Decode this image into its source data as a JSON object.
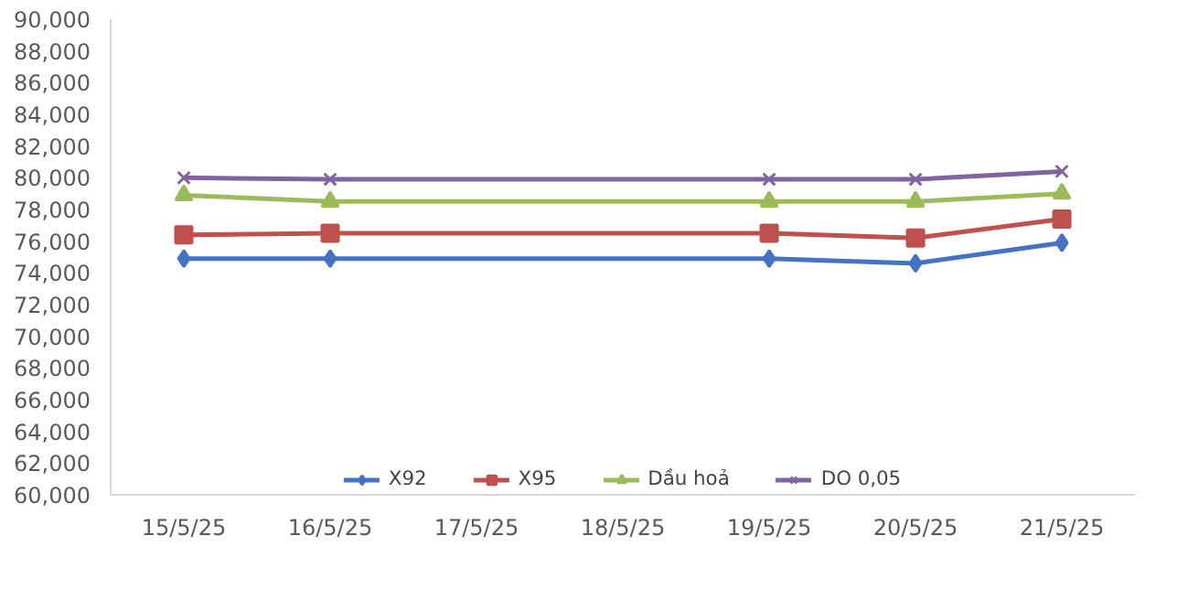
{
  "chart_data": {
    "type": "line",
    "categories": [
      "15/5/25",
      "16/5/25",
      "17/5/25",
      "18/5/25",
      "19/5/25",
      "20/5/25",
      "21/5/25"
    ],
    "series": [
      {
        "name": "X92",
        "color": "#4472c4",
        "marker": "diamond",
        "values": [
          74900,
          74900,
          null,
          null,
          74900,
          74600,
          75900
        ]
      },
      {
        "name": "X95",
        "color": "#c0504d",
        "marker": "square",
        "values": [
          76400,
          76500,
          null,
          null,
          76500,
          76200,
          77400
        ]
      },
      {
        "name": "Dầu hoả",
        "color": "#9bbb59",
        "marker": "triangle",
        "values": [
          78900,
          78500,
          null,
          null,
          78500,
          78500,
          79000
        ]
      },
      {
        "name": "DO 0,05",
        "color": "#8064a2",
        "marker": "cross",
        "values": [
          80000,
          79900,
          null,
          null,
          79900,
          79900,
          80400
        ]
      }
    ],
    "ylim": [
      60000,
      90000
    ],
    "yticks": [
      {
        "value": 60000,
        "label": "60,000"
      },
      {
        "value": 62000,
        "label": "62,000"
      },
      {
        "value": 64000,
        "label": "64,000"
      },
      {
        "value": 66000,
        "label": "66,000"
      },
      {
        "value": 68000,
        "label": "68,000"
      },
      {
        "value": 70000,
        "label": "70,000"
      },
      {
        "value": 72000,
        "label": "72,000"
      },
      {
        "value": 74000,
        "label": "74,000"
      },
      {
        "value": 76000,
        "label": "76,000"
      },
      {
        "value": 78000,
        "label": "78,000"
      },
      {
        "value": 80000,
        "label": "80,000"
      },
      {
        "value": 82000,
        "label": "82,000"
      },
      {
        "value": 84000,
        "label": "84,000"
      },
      {
        "value": 86000,
        "label": "86,000"
      },
      {
        "value": 88000,
        "label": "88,000"
      },
      {
        "value": 90000,
        "label": "90,000"
      }
    ],
    "grid": false,
    "legend": "bottom"
  }
}
